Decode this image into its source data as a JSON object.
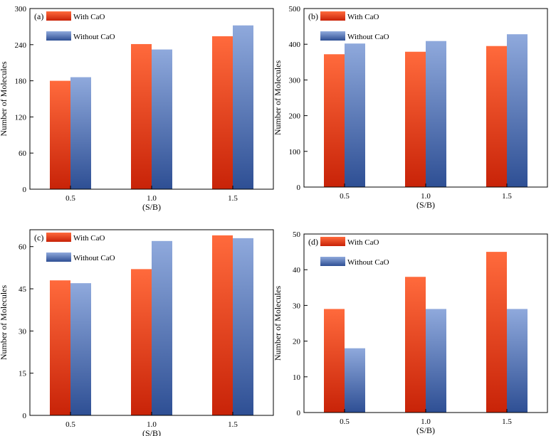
{
  "figure": {
    "colors": {
      "with_top": "#ff6a3c",
      "with_bottom": "#c82308",
      "without_top": "#8fa9dc",
      "without_bottom": "#2e4f94",
      "axis": "#000000"
    }
  },
  "chart_data": [
    {
      "type": "bar",
      "panel_label": "(a)",
      "categories": [
        "0.5",
        "1.0",
        "1.5"
      ],
      "series": [
        {
          "name": "With CaO",
          "values": [
            180,
            241,
            254
          ]
        },
        {
          "name": "Without CaO",
          "values": [
            186,
            232,
            272
          ]
        }
      ],
      "xlabel": "(S/B)",
      "ylabel": "Number of Molecules",
      "ylim": [
        0,
        300
      ],
      "yticks": [
        "0",
        "60",
        "120",
        "180",
        "240",
        "300"
      ],
      "legend_position": "top-left",
      "grid": false
    },
    {
      "type": "bar",
      "panel_label": "(b)",
      "categories": [
        "0.5",
        "1.0",
        "1.5"
      ],
      "series": [
        {
          "name": "With CaO",
          "values": [
            372,
            379,
            395
          ]
        },
        {
          "name": "Without CaO",
          "values": [
            402,
            409,
            428
          ]
        }
      ],
      "xlabel": "(S/B)",
      "ylabel": "Number of Molecules",
      "ylim": [
        0,
        500
      ],
      "yticks": [
        "0",
        "100",
        "200",
        "300",
        "400",
        "500"
      ],
      "legend_position": "top-left",
      "grid": false
    },
    {
      "type": "bar",
      "panel_label": "(c)",
      "categories": [
        "0.5",
        "1.0",
        "1.5"
      ],
      "series": [
        {
          "name": "With CaO",
          "values": [
            48,
            52,
            64
          ]
        },
        {
          "name": "Without CaO",
          "values": [
            47,
            62,
            63
          ]
        }
      ],
      "xlabel": "(S/B)",
      "ylabel": "Number of Molecules",
      "ylim": [
        0,
        66
      ],
      "yticks": [
        "0",
        "15",
        "30",
        "45",
        "60"
      ],
      "legend_position": "top-left",
      "grid": false
    },
    {
      "type": "bar",
      "panel_label": "(d)",
      "categories": [
        "0.5",
        "1.0",
        "1.5"
      ],
      "series": [
        {
          "name": "With CaO",
          "values": [
            29,
            38,
            45
          ]
        },
        {
          "name": "Without CaO",
          "values": [
            18,
            29,
            29
          ]
        }
      ],
      "xlabel": "(S/B)",
      "ylabel": "Number of Molecules",
      "ylim": [
        0,
        50
      ],
      "yticks": [
        "0",
        "10",
        "20",
        "30",
        "40",
        "50"
      ],
      "legend_position": "top-left",
      "grid": false
    }
  ]
}
